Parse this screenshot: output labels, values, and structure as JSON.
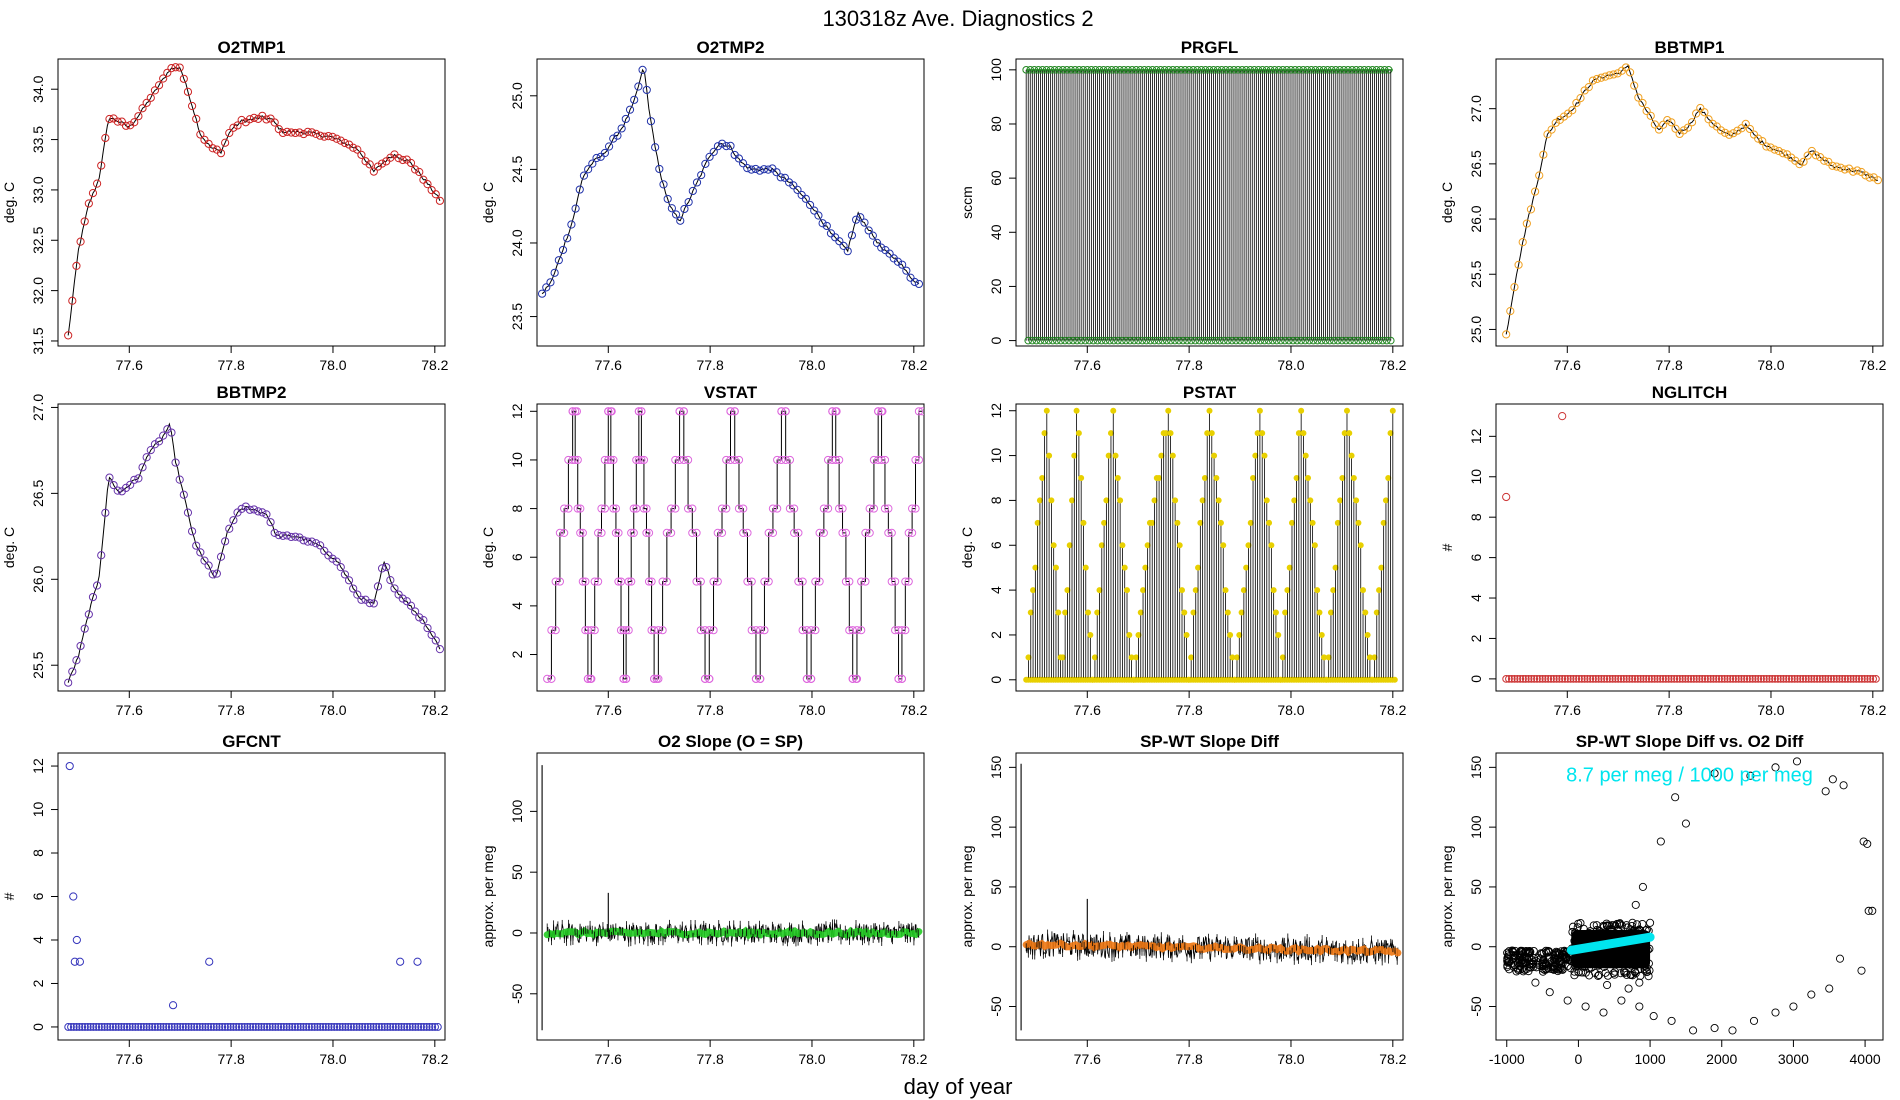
{
  "figure": {
    "title": "130318z   Ave. Diagnostics 2",
    "xlabel": "day of year"
  },
  "chart_data": [
    {
      "type": "line",
      "title": "O2TMP1",
      "ylabel": "deg. C",
      "xlim": [
        77.46,
        78.22
      ],
      "ylim": [
        31.45,
        34.3
      ],
      "xticks": [
        77.6,
        77.8,
        78.0,
        78.2
      ],
      "xtick_labels": [
        "77.6",
        "77.8",
        "78.0",
        "78.2"
      ],
      "yticks": [
        31.5,
        32.0,
        32.5,
        33.0,
        33.5,
        34.0
      ],
      "ytick_labels": [
        "31.5",
        "32.0",
        "32.5",
        "33.0",
        "33.5",
        "34.0"
      ],
      "marker_color": "#cc2222",
      "x": [
        77.48,
        77.5,
        77.52,
        77.54,
        77.56,
        77.58,
        77.6,
        77.62,
        77.64,
        77.66,
        77.68,
        77.7,
        77.72,
        77.74,
        77.76,
        77.78,
        77.8,
        77.82,
        77.84,
        77.86,
        77.88,
        77.9,
        77.95,
        78.0,
        78.05,
        78.08,
        78.1,
        78.12,
        78.15,
        78.18,
        78.21
      ],
      "y": [
        31.55,
        32.4,
        32.85,
        33.1,
        33.72,
        33.68,
        33.62,
        33.75,
        33.9,
        34.05,
        34.2,
        34.22,
        33.9,
        33.55,
        33.42,
        33.38,
        33.6,
        33.68,
        33.7,
        33.72,
        33.7,
        33.58,
        33.57,
        33.52,
        33.4,
        33.18,
        33.28,
        33.35,
        33.28,
        33.1,
        32.9
      ]
    },
    {
      "type": "line",
      "title": "O2TMP2",
      "ylabel": "deg. C",
      "xlim": [
        77.46,
        78.22
      ],
      "ylim": [
        23.3,
        25.25
      ],
      "xticks": [
        77.6,
        77.8,
        78.0,
        78.2
      ],
      "xtick_labels": [
        "77.6",
        "77.8",
        "78.0",
        "78.2"
      ],
      "yticks": [
        23.5,
        24.0,
        24.5,
        25.0
      ],
      "ytick_labels": [
        "23.5",
        "24.0",
        "24.5",
        "25.0"
      ],
      "marker_color": "#2233aa",
      "x": [
        77.47,
        77.49,
        77.51,
        77.53,
        77.55,
        77.57,
        77.59,
        77.61,
        77.63,
        77.65,
        77.67,
        77.68,
        77.7,
        77.72,
        77.74,
        77.76,
        77.78,
        77.8,
        77.82,
        77.84,
        77.86,
        77.88,
        77.92,
        77.96,
        78.0,
        78.04,
        78.07,
        78.09,
        78.11,
        78.14,
        78.17,
        78.19,
        78.21
      ],
      "y": [
        23.65,
        23.75,
        23.95,
        24.15,
        24.45,
        24.55,
        24.6,
        24.7,
        24.8,
        24.95,
        25.2,
        24.9,
        24.5,
        24.25,
        24.15,
        24.3,
        24.45,
        24.6,
        24.68,
        24.65,
        24.55,
        24.5,
        24.5,
        24.4,
        24.25,
        24.05,
        23.95,
        24.2,
        24.1,
        23.95,
        23.88,
        23.78,
        23.72
      ]
    },
    {
      "type": "line",
      "title": "PRGFL",
      "ylabel": "sccm",
      "xlim": [
        77.46,
        78.22
      ],
      "ylim": [
        -2,
        104
      ],
      "xticks": [
        77.6,
        77.8,
        78.0,
        78.2
      ],
      "xtick_labels": [
        "77.6",
        "77.8",
        "78.0",
        "78.2"
      ],
      "yticks": [
        0,
        20,
        40,
        60,
        80,
        100
      ],
      "ytick_labels": [
        "0",
        "20",
        "40",
        "60",
        "80",
        "100"
      ],
      "marker_color": "#228822",
      "pattern": "square wave alternating between 0 and 100",
      "high_value": 100,
      "low_value": 0,
      "x_start": 77.48,
      "x_end": 78.2,
      "period": 0.008
    },
    {
      "type": "line",
      "title": "BBTMP1",
      "ylabel": "deg. C",
      "xlim": [
        77.46,
        78.22
      ],
      "ylim": [
        24.85,
        27.45
      ],
      "xticks": [
        77.6,
        77.8,
        78.0,
        78.2
      ],
      "xtick_labels": [
        "77.6",
        "77.8",
        "78.0",
        "78.2"
      ],
      "yticks": [
        25.0,
        25.5,
        26.0,
        26.5,
        27.0
      ],
      "ytick_labels": [
        "25.0",
        "25.5",
        "26.0",
        "26.5",
        "27.0"
      ],
      "marker_color": "#f0a020",
      "x": [
        77.48,
        77.5,
        77.52,
        77.54,
        77.56,
        77.58,
        77.6,
        77.62,
        77.64,
        77.66,
        77.68,
        77.7,
        77.72,
        77.74,
        77.76,
        77.78,
        77.8,
        77.82,
        77.84,
        77.86,
        77.88,
        77.9,
        77.92,
        77.95,
        77.98,
        78.0,
        78.03,
        78.06,
        78.08,
        78.1,
        78.12,
        78.15,
        78.18,
        78.21
      ],
      "y": [
        24.95,
        25.5,
        25.95,
        26.3,
        26.75,
        26.9,
        26.95,
        27.05,
        27.2,
        27.28,
        27.3,
        27.32,
        27.38,
        27.1,
        26.95,
        26.8,
        26.9,
        26.78,
        26.85,
        27.0,
        26.9,
        26.8,
        26.75,
        26.85,
        26.7,
        26.65,
        26.58,
        26.5,
        26.62,
        26.55,
        26.48,
        26.45,
        26.42,
        26.35
      ]
    },
    {
      "type": "line",
      "title": "BBTMP2",
      "ylabel": "deg. C",
      "xlim": [
        77.46,
        78.22
      ],
      "ylim": [
        25.35,
        27.02
      ],
      "xticks": [
        77.6,
        77.8,
        78.0,
        78.2
      ],
      "xtick_labels": [
        "77.6",
        "77.8",
        "78.0",
        "78.2"
      ],
      "yticks": [
        25.5,
        26.0,
        26.5,
        27.0
      ],
      "ytick_labels": [
        "25.5",
        "26.0",
        "26.5",
        "27.0"
      ],
      "marker_color": "#6633aa",
      "x": [
        77.48,
        77.5,
        77.52,
        77.54,
        77.56,
        77.58,
        77.6,
        77.62,
        77.64,
        77.66,
        77.68,
        77.69,
        77.71,
        77.73,
        77.75,
        77.77,
        77.79,
        77.81,
        77.83,
        77.85,
        77.87,
        77.89,
        77.93,
        77.97,
        78.01,
        78.05,
        78.08,
        78.1,
        78.12,
        78.15,
        78.18,
        78.21
      ],
      "y": [
        25.4,
        25.55,
        25.8,
        26.0,
        26.6,
        26.5,
        26.55,
        26.6,
        26.75,
        26.8,
        26.9,
        26.7,
        26.45,
        26.2,
        26.1,
        26.0,
        26.25,
        26.38,
        26.42,
        26.4,
        26.38,
        26.25,
        26.25,
        26.2,
        26.1,
        25.9,
        25.85,
        26.1,
        25.95,
        25.85,
        25.75,
        25.6
      ]
    },
    {
      "type": "line",
      "title": "VSTAT",
      "ylabel": "deg. C",
      "xlim": [
        77.46,
        78.22
      ],
      "ylim": [
        0.5,
        12.3
      ],
      "xticks": [
        77.6,
        77.8,
        78.0,
        78.2
      ],
      "xtick_labels": [
        "77.6",
        "77.8",
        "78.0",
        "78.2"
      ],
      "yticks": [
        2,
        4,
        6,
        8,
        10,
        12
      ],
      "ytick_labels": [
        "2",
        "4",
        "6",
        "8",
        "10",
        "12"
      ],
      "marker_color": "#dd66dd",
      "x": [
        77.48,
        77.53,
        77.56,
        77.6,
        77.63,
        77.66,
        77.69,
        77.74,
        77.79,
        77.84,
        77.89,
        77.94,
        77.99,
        78.04,
        78.08,
        78.13,
        78.17,
        78.21
      ],
      "y": [
        1,
        12,
        1,
        12,
        1,
        12,
        1,
        12,
        1,
        12,
        1,
        12,
        1,
        12,
        1,
        12,
        1,
        12
      ]
    },
    {
      "type": "line",
      "title": "PSTAT",
      "ylabel": "deg. C",
      "xlim": [
        77.46,
        78.22
      ],
      "ylim": [
        -0.5,
        12.3
      ],
      "xticks": [
        77.6,
        77.8,
        78.0,
        78.2
      ],
      "xtick_labels": [
        "77.6",
        "77.8",
        "78.0",
        "78.2"
      ],
      "yticks": [
        0,
        2,
        4,
        6,
        8,
        10,
        12
      ],
      "ytick_labels": [
        "0",
        "2",
        "4",
        "6",
        "8",
        "10",
        "12"
      ],
      "marker_color": "#e8d000",
      "envelope_x": [
        77.48,
        77.52,
        77.55,
        77.58,
        77.61,
        77.65,
        77.69,
        77.73,
        77.76,
        77.8,
        77.84,
        77.89,
        77.94,
        77.98,
        78.02,
        78.07,
        78.11,
        78.16,
        78.2
      ],
      "envelope_y": [
        0,
        12,
        0,
        12,
        0,
        12,
        0,
        8,
        12,
        0,
        12,
        0,
        12,
        0,
        12,
        0,
        12,
        0,
        12
      ],
      "pattern": "oscillates between 0 and envelope value"
    },
    {
      "type": "scatter",
      "title": "NGLITCH",
      "ylabel": "#",
      "xlim": [
        77.46,
        78.22
      ],
      "ylim": [
        -0.6,
        13.6
      ],
      "xticks": [
        77.6,
        77.8,
        78.0,
        78.2
      ],
      "xtick_labels": [
        "77.6",
        "77.8",
        "78.0",
        "78.2"
      ],
      "yticks": [
        0,
        2,
        4,
        6,
        8,
        10,
        12
      ],
      "ytick_labels": [
        "0",
        "2",
        "4",
        "6",
        "8",
        "10",
        "12"
      ],
      "marker_color": "#cc3333",
      "outliers": [
        {
          "x": 77.48,
          "y": 9
        },
        {
          "x": 77.59,
          "y": 13
        }
      ],
      "baseline_value": 0
    },
    {
      "type": "scatter",
      "title": "GFCNT",
      "ylabel": "#",
      "xlim": [
        77.46,
        78.22
      ],
      "ylim": [
        -0.6,
        12.6
      ],
      "xticks": [
        77.6,
        77.8,
        78.0,
        78.2
      ],
      "xtick_labels": [
        "77.6",
        "77.8",
        "78.0",
        "78.2"
      ],
      "yticks": [
        0,
        2,
        4,
        6,
        8,
        10,
        12
      ],
      "ytick_labels": [
        "0",
        "2",
        "4",
        "6",
        "8",
        "10",
        "12"
      ],
      "marker_color": "#3333bb",
      "outliers": [
        {
          "x": 77.483,
          "y": 12
        },
        {
          "x": 77.49,
          "y": 6
        },
        {
          "x": 77.497,
          "y": 4
        },
        {
          "x": 77.493,
          "y": 3
        },
        {
          "x": 77.503,
          "y": 3
        },
        {
          "x": 77.686,
          "y": 1
        },
        {
          "x": 77.757,
          "y": 3
        },
        {
          "x": 78.132,
          "y": 3
        },
        {
          "x": 78.166,
          "y": 3
        }
      ],
      "baseline_value": 0
    },
    {
      "type": "line",
      "title": "O2 Slope (O = SP)",
      "ylabel": "approx. per meg",
      "xlim": [
        77.46,
        78.22
      ],
      "ylim": [
        -88,
        148
      ],
      "xticks": [
        77.6,
        77.8,
        78.0,
        78.2
      ],
      "xtick_labels": [
        "77.6",
        "77.8",
        "78.0",
        "78.2"
      ],
      "yticks": [
        -50,
        0,
        50,
        100
      ],
      "ytick_labels": [
        "-50",
        "0",
        "50",
        "100"
      ],
      "marker_color": "#22cc22",
      "pattern": "noise around 0",
      "spikes": [
        {
          "x": 77.47,
          "ymin": -80,
          "ymax": 138
        },
        {
          "x": 77.6,
          "ymin": -5,
          "ymax": 33
        }
      ],
      "center": 0,
      "noise_amplitude": 8
    },
    {
      "type": "line",
      "title": "SP-WT Slope Diff",
      "ylabel": "approx. per meg",
      "xlim": [
        77.46,
        78.22
      ],
      "ylim": [
        -78,
        162
      ],
      "xticks": [
        77.6,
        77.8,
        78.0,
        78.2
      ],
      "xtick_labels": [
        "77.6",
        "77.8",
        "78.0",
        "78.2"
      ],
      "yticks": [
        -50,
        0,
        50,
        100,
        150
      ],
      "ytick_labels": [
        "-50",
        "0",
        "50",
        "100",
        "150"
      ],
      "marker_color": "#ee7711",
      "pattern": "noise with slight negative drift",
      "spikes": [
        {
          "x": 77.47,
          "ymin": -70,
          "ymax": 153
        },
        {
          "x": 77.6,
          "ymin": -5,
          "ymax": 40
        }
      ],
      "center_start": 2,
      "center_end": -4,
      "noise_amplitude": 10
    },
    {
      "type": "scatter",
      "title": "SP-WT Slope Diff vs. O2 Diff",
      "ylabel": "approx. per meg",
      "annotation": "8.7 per meg / 1000 per meg",
      "annotation_color": "#00e5ee",
      "xlim": [
        -1150,
        4250
      ],
      "ylim": [
        -78,
        162
      ],
      "xticks": [
        -1000,
        0,
        1000,
        2000,
        3000,
        4000
      ],
      "xtick_labels": [
        "-1000",
        "0",
        "1000",
        "2000",
        "3000",
        "4000"
      ],
      "yticks": [
        -50,
        0,
        50,
        100,
        150
      ],
      "ytick_labels": [
        "-50",
        "0",
        "50",
        "100",
        "150"
      ],
      "marker_color": "#000000",
      "cluster": {
        "x_range": [
          -1000,
          1000
        ],
        "y_range": [
          -25,
          20
        ]
      },
      "arc_points": [
        {
          "x": -600,
          "y": -30
        },
        {
          "x": -400,
          "y": -38
        },
        {
          "x": -150,
          "y": -45
        },
        {
          "x": 100,
          "y": -50
        },
        {
          "x": 350,
          "y": -55
        },
        {
          "x": 600,
          "y": -45
        },
        {
          "x": 850,
          "y": -50
        },
        {
          "x": 1050,
          "y": -58
        },
        {
          "x": 1300,
          "y": -62
        },
        {
          "x": 1600,
          "y": -70
        },
        {
          "x": 1900,
          "y": -68
        },
        {
          "x": 2150,
          "y": -70
        },
        {
          "x": 2450,
          "y": -62
        },
        {
          "x": 2750,
          "y": -55
        },
        {
          "x": 3000,
          "y": -50
        },
        {
          "x": 3250,
          "y": -40
        },
        {
          "x": 3500,
          "y": -35
        },
        {
          "x": 3650,
          "y": -10
        },
        {
          "x": 3950,
          "y": -20
        },
        {
          "x": 4050,
          "y": 30
        },
        {
          "x": 4100,
          "y": 30
        },
        {
          "x": 3980,
          "y": 88
        },
        {
          "x": 4030,
          "y": 86
        },
        {
          "x": 3700,
          "y": 135
        },
        {
          "x": 3550,
          "y": 140
        },
        {
          "x": 3450,
          "y": 130
        },
        {
          "x": 3050,
          "y": 155
        },
        {
          "x": 2750,
          "y": 150
        },
        {
          "x": 2400,
          "y": 143
        },
        {
          "x": 1900,
          "y": 145
        },
        {
          "x": 1500,
          "y": 103
        },
        {
          "x": 1350,
          "y": 125
        },
        {
          "x": 1150,
          "y": 88
        },
        {
          "x": 1000,
          "y": 20
        },
        {
          "x": 900,
          "y": 50
        },
        {
          "x": 800,
          "y": 35
        },
        {
          "x": 950,
          "y": -20
        },
        {
          "x": 850,
          "y": -30
        },
        {
          "x": 700,
          "y": -35
        },
        {
          "x": 400,
          "y": -32
        }
      ],
      "fit_line": {
        "x": [
          -100,
          1000
        ],
        "y": [
          -3,
          8
        ]
      },
      "fit_color": "#00e5ee"
    }
  ]
}
